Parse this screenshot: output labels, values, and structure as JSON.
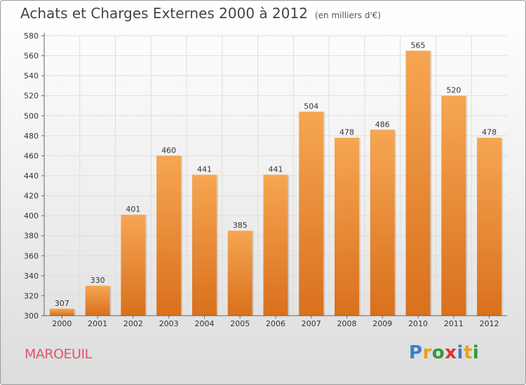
{
  "header": {
    "title": "Achats et Charges Externes 2000 à 2012",
    "unit": "(en milliers d'€)"
  },
  "footer": {
    "city": "MAROEUIL",
    "logo": "Proxiti",
    "logo_colors": [
      "#3a7ecf",
      "#e8a21d",
      "#2f9a3a",
      "#d9372c",
      "#3a7ecf",
      "#e8a21d",
      "#2f9a3a"
    ]
  },
  "colors": {
    "bar_light": "#f6a652",
    "bar_dark": "#d9701c",
    "grid": "#dddddd",
    "axis": "#666666",
    "text": "#333333"
  },
  "chart_data": {
    "type": "bar",
    "title": "Achats et Charges Externes 2000 à 2012",
    "subtitle": "(en milliers d'€)",
    "categories": [
      "2000",
      "2001",
      "2002",
      "2003",
      "2004",
      "2005",
      "2006",
      "2007",
      "2008",
      "2009",
      "2010",
      "2011",
      "2012"
    ],
    "values": [
      307,
      330,
      401,
      460,
      441,
      385,
      441,
      504,
      478,
      486,
      565,
      520,
      478
    ],
    "ylim": [
      300,
      580
    ],
    "yticks": [
      300,
      320,
      340,
      360,
      380,
      400,
      420,
      440,
      460,
      480,
      500,
      520,
      540,
      560,
      580
    ],
    "grid": true,
    "data_labels": true
  }
}
